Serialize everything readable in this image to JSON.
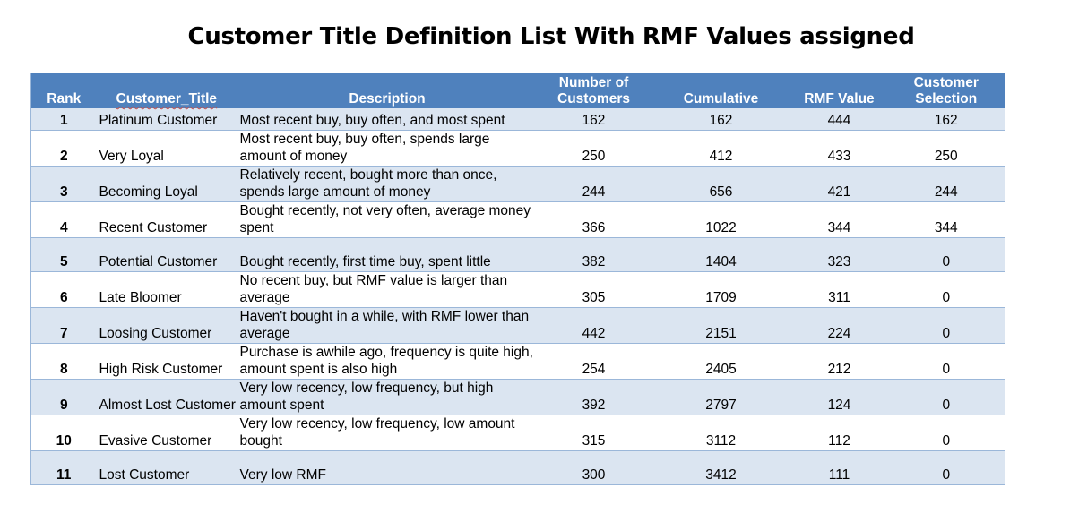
{
  "title": "Customer Title Definition List With RMF Values assigned",
  "headers": {
    "rank": "Rank",
    "customer_title": "Customer_Title",
    "description": "Description",
    "number_of_customers_line1": "Number of",
    "number_of_customers_line2": "Customers",
    "cumulative": "Cumulative",
    "rmf_value": "RMF Value",
    "customer_selection_line1": "Customer",
    "customer_selection_line2": "Selection"
  },
  "rows": [
    {
      "rank": "1",
      "title": "Platinum Customer",
      "description": "Most recent buy, buy often, and most spent",
      "number": "162",
      "cumulative": "162",
      "rmf": "444",
      "selection": "162"
    },
    {
      "rank": "2",
      "title": "Very Loyal",
      "description": "Most recent buy, buy often, spends large amount of money",
      "number": "250",
      "cumulative": "412",
      "rmf": "433",
      "selection": "250"
    },
    {
      "rank": "3",
      "title": "Becoming Loyal",
      "description": "Relatively recent, bought more than once, spends large amount of money",
      "number": "244",
      "cumulative": "656",
      "rmf": "421",
      "selection": "244"
    },
    {
      "rank": "4",
      "title": "Recent Customer",
      "description": "Bought recently, not very often, average money spent",
      "number": "366",
      "cumulative": "1022",
      "rmf": "344",
      "selection": "344"
    },
    {
      "rank": "5",
      "title": "Potential Customer",
      "description": "Bought recently, first time buy, spent little",
      "number": "382",
      "cumulative": "1404",
      "rmf": "323",
      "selection": "0"
    },
    {
      "rank": "6",
      "title": "Late Bloomer",
      "description": "No recent buy, but RMF value is larger than average",
      "number": "305",
      "cumulative": "1709",
      "rmf": "311",
      "selection": "0"
    },
    {
      "rank": "7",
      "title": "Loosing Customer",
      "description": "Haven't bought in a while, with RMF lower than average",
      "number": "442",
      "cumulative": "2151",
      "rmf": "224",
      "selection": "0"
    },
    {
      "rank": "8",
      "title": "High Risk Customer",
      "description": "Purchase is awhile ago, frequency is quite high, amount spent is also high",
      "number": "254",
      "cumulative": "2405",
      "rmf": "212",
      "selection": "0"
    },
    {
      "rank": "9",
      "title": "Almost Lost Customer",
      "description": "Very low recency, low frequency, but high amount spent",
      "number": "392",
      "cumulative": "2797",
      "rmf": "124",
      "selection": "0"
    },
    {
      "rank": "10",
      "title": "Evasive Customer",
      "description": "Very low recency, low frequency, low amount bought",
      "number": "315",
      "cumulative": "3112",
      "rmf": "112",
      "selection": "0"
    },
    {
      "rank": "11",
      "title": "Lost Customer",
      "description": "Very low RMF",
      "number": "300",
      "cumulative": "3412",
      "rmf": "111",
      "selection": "0"
    }
  ]
}
